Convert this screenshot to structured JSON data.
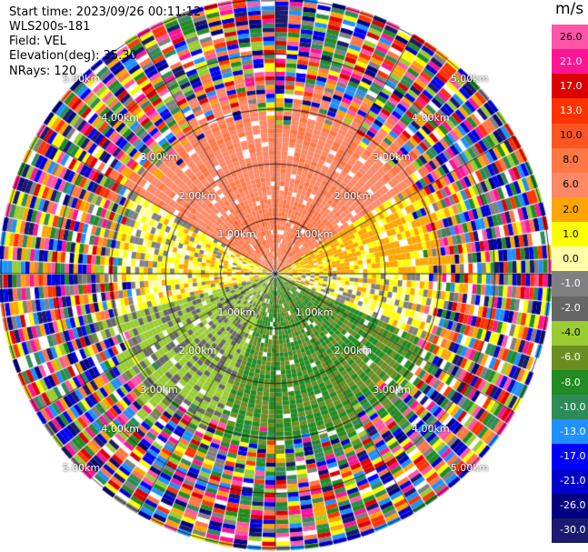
{
  "info": {
    "start_time": "Start time: 2023/09/26 00:11:12",
    "station": "WLS200s-181",
    "field": "Field: VEL",
    "elevation": "Elevation(deg): 35.30",
    "nrays": "NRays: 120"
  },
  "chart_data": {
    "type": "heatmap",
    "projection": "polar (PPI scan)",
    "field": "VEL",
    "units": "m/s",
    "nrays": 120,
    "range_rings_km": [
      1.0,
      2.0,
      3.0,
      4.0,
      5.0
    ],
    "ring_labels": [
      "1.00km",
      "2.00km",
      "3.00km",
      "4.00km",
      "5.00km"
    ],
    "max_range_km": 5.0,
    "colorbar": {
      "label": "m/s",
      "ticks": [
        "26.0",
        "21.0",
        "17.0",
        "13.0",
        "10.0",
        "8.0",
        "6.0",
        "2.0",
        "1.0",
        "0.0",
        "-1.0",
        "-2.0",
        "-4.0",
        "-6.0",
        "-8.0",
        "-10.0",
        "-13.0",
        "-17.0",
        "-21.0",
        "-26.0",
        "-30.0"
      ],
      "colors": [
        "#ff55a8",
        "#ff1493",
        "#dd0000",
        "#ff3300",
        "#ff5522",
        "#ff7744",
        "#ff8866",
        "#ffa500",
        "#ffff00",
        "#ffffaa",
        "#808080",
        "#666666",
        "#9acd32",
        "#6b8e23",
        "#228b22",
        "#2e8b57",
        "#1e90ff",
        "#0000ff",
        "#0000cd",
        "#000080",
        "#1a1a6e"
      ]
    },
    "velocity_field_by_range": [
      {
        "range_km": "0-1",
        "azimuth_sector": "north (300-60 deg)",
        "velocity_mps": 7.0
      },
      {
        "range_km": "0-1",
        "azimuth_sector": "north-east (60-90 deg)",
        "velocity_mps": 2.0
      },
      {
        "range_km": "0-1",
        "azimuth_sector": "west (260-300 deg)",
        "velocity_mps": 0.5
      },
      {
        "range_km": "0-1",
        "azimuth_sector": "east (90-110 deg)",
        "velocity_mps": 0.0
      },
      {
        "range_km": "0-1",
        "azimuth_sector": "south-west (200-260 deg)",
        "velocity_mps": -3.0
      },
      {
        "range_km": "0-1",
        "azimuth_sector": "south (110-200 deg)",
        "velocity_mps": -8.0
      },
      {
        "range_km": "1-3",
        "azimuth_sector": "north",
        "velocity_mps": 6.0
      },
      {
        "range_km": "1-3",
        "azimuth_sector": "north-east",
        "velocity_mps": 2.0
      },
      {
        "range_km": "1-3",
        "azimuth_sector": "south",
        "velocity_mps": -7.0
      },
      {
        "range_km": "3-5",
        "azimuth_sector": "all",
        "velocity_mps": "noise (full scale)"
      }
    ]
  }
}
